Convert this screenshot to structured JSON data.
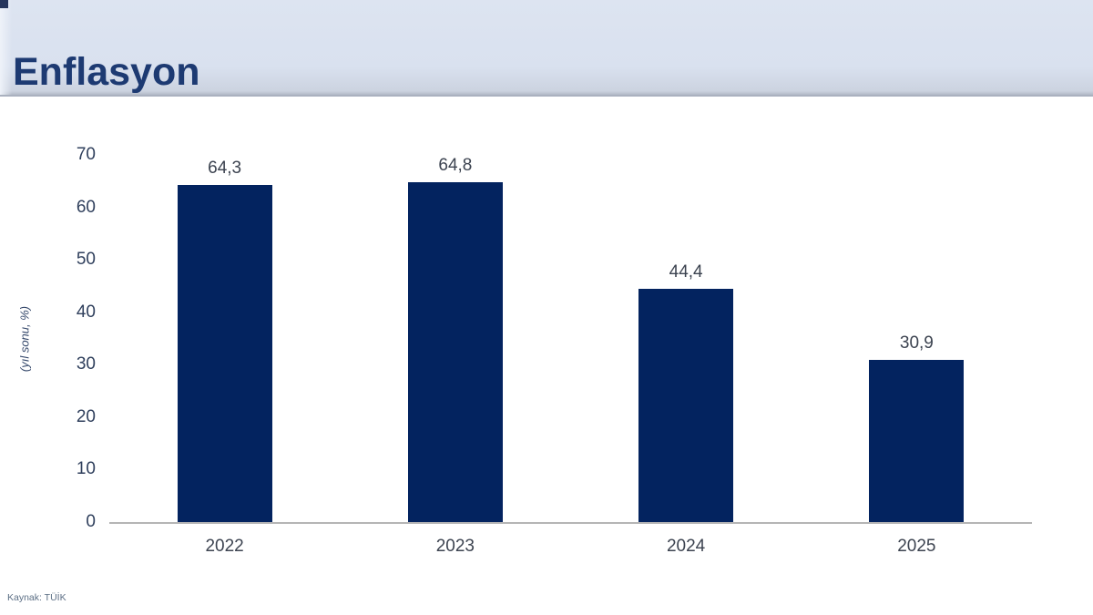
{
  "header": {
    "title": "Enflasyon"
  },
  "source_note": "Kaynak: TÜİK",
  "colors": {
    "header_bg": "#d9e1ef",
    "header_text": "#1d3a72",
    "bar": "#03235f",
    "axis_line": "#b5b5b5",
    "tick_text": "#2f3f5c",
    "label_text": "#3c4350",
    "source_text": "#5c6f85"
  },
  "chart_data": {
    "type": "bar",
    "title": "Enflasyon",
    "categories": [
      "2022",
      "2023",
      "2024",
      "2025"
    ],
    "values": [
      64.3,
      64.8,
      44.4,
      30.9
    ],
    "value_labels": [
      "64,3",
      "64,8",
      "44,4",
      "30,9"
    ],
    "xlabel": "",
    "ylabel": "(yıl sonu, %)",
    "ylim": [
      0,
      70
    ],
    "yticks": [
      0,
      10,
      20,
      30,
      40,
      50,
      60,
      70
    ],
    "grid": false,
    "legend": "none",
    "bar_color": "#03235f"
  }
}
